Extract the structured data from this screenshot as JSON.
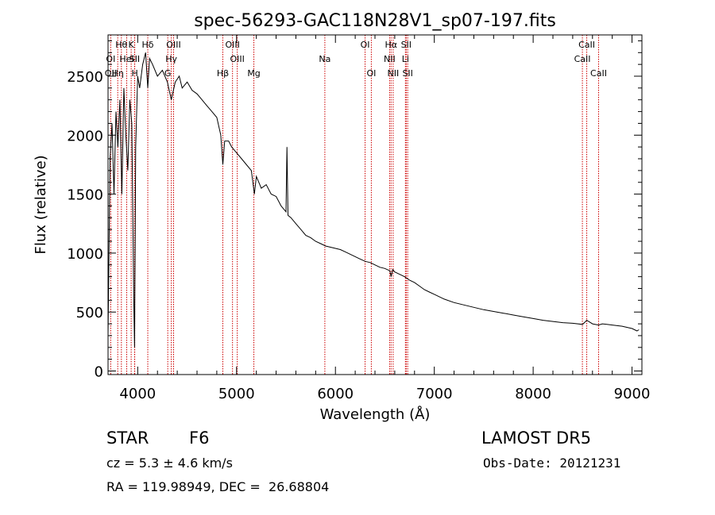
{
  "chart_data": {
    "type": "line",
    "title": "spec-56293-GAC118N28V1_sp07-197.fits",
    "xlabel": "Wavelength (Å)",
    "ylabel": "Flux (relative)",
    "xlim": [
      3700,
      9100
    ],
    "ylim": [
      -30,
      2850
    ],
    "x_ticks": [
      4000,
      5000,
      6000,
      7000,
      8000,
      9000
    ],
    "y_ticks": [
      0,
      500,
      1000,
      1500,
      2000,
      2500
    ],
    "grid": false,
    "series": [
      {
        "x": [
          3700,
          3720,
          3740,
          3760,
          3780,
          3800,
          3820,
          3840,
          3860,
          3880,
          3900,
          3920,
          3940,
          3960,
          3968,
          3980,
          4000,
          4020,
          4050,
          4080,
          4102,
          4120,
          4150,
          4200,
          4250,
          4300,
          4340,
          4380,
          4420,
          4450,
          4500,
          4550,
          4600,
          4650,
          4700,
          4750,
          4800,
          4840,
          4861,
          4880,
          4920,
          4950,
          5000,
          5050,
          5100,
          5150,
          5180,
          5200,
          5250,
          5300,
          5350,
          5400,
          5450,
          5500,
          5510,
          5520,
          5550,
          5600,
          5650,
          5700,
          5750,
          5800,
          5850,
          5900,
          5950,
          6000,
          6050,
          6100,
          6150,
          6200,
          6250,
          6300,
          6350,
          6400,
          6450,
          6500,
          6550,
          6563,
          6580,
          6600,
          6650,
          6700,
          6750,
          6800,
          6850,
          6900,
          6950,
          7000,
          7100,
          7200,
          7300,
          7400,
          7500,
          7600,
          7700,
          7800,
          7900,
          8000,
          8100,
          8200,
          8300,
          8400,
          8500,
          8542,
          8600,
          8662,
          8700,
          8800,
          8900,
          9000,
          9050,
          9070
        ],
        "y": [
          300,
          1800,
          2100,
          1500,
          2200,
          1900,
          2300,
          1500,
          2400,
          2000,
          1700,
          2300,
          2100,
          600,
          200,
          1900,
          2500,
          2400,
          2600,
          2700,
          2400,
          2650,
          2600,
          2500,
          2550,
          2450,
          2300,
          2450,
          2500,
          2400,
          2450,
          2380,
          2350,
          2300,
          2250,
          2200,
          2150,
          2000,
          1750,
          1950,
          1950,
          1900,
          1850,
          1800,
          1750,
          1700,
          1500,
          1650,
          1550,
          1580,
          1500,
          1480,
          1400,
          1350,
          1900,
          1320,
          1300,
          1250,
          1200,
          1150,
          1130,
          1100,
          1080,
          1060,
          1050,
          1040,
          1030,
          1010,
          990,
          970,
          950,
          930,
          920,
          900,
          880,
          870,
          850,
          800,
          860,
          840,
          820,
          800,
          770,
          750,
          720,
          690,
          670,
          650,
          610,
          580,
          560,
          540,
          520,
          505,
          490,
          475,
          460,
          445,
          430,
          420,
          410,
          405,
          395,
          430,
          400,
          390,
          400,
          390,
          380,
          360,
          340,
          350
        ]
      }
    ],
    "line_labels_row1": [
      {
        "wl": 3835,
        "text": "Hθ"
      },
      {
        "wl": 3934,
        "text": "K"
      },
      {
        "wl": 4102,
        "text": "Hδ"
      },
      {
        "wl": 4363,
        "text": "OIII"
      },
      {
        "wl": 4959,
        "text": "OIII"
      },
      {
        "wl": 6300,
        "text": "OI"
      },
      {
        "wl": 6563,
        "text": "Hα"
      },
      {
        "wl": 6716,
        "text": "SII"
      },
      {
        "wl": 8542,
        "text": "CaII"
      }
    ],
    "line_labels_row2": [
      {
        "wl": 3727,
        "text": "OI"
      },
      {
        "wl": 3889,
        "text": "HeI"
      },
      {
        "wl": 3968,
        "text": "SII"
      },
      {
        "wl": 4340,
        "text": "Hγ"
      },
      {
        "wl": 5007,
        "text": "OIII"
      },
      {
        "wl": 5893,
        "text": "Na"
      },
      {
        "wl": 6548,
        "text": "NII"
      },
      {
        "wl": 6708,
        "text": "Li"
      },
      {
        "wl": 8498,
        "text": "CaII"
      }
    ],
    "line_labels_row3": [
      {
        "wl": 3727,
        "text": "OII"
      },
      {
        "wl": 3798,
        "text": "Hη"
      },
      {
        "wl": 3970,
        "text": "H"
      },
      {
        "wl": 4304,
        "text": "G"
      },
      {
        "wl": 4861,
        "text": "Hβ"
      },
      {
        "wl": 5175,
        "text": "Mg"
      },
      {
        "wl": 6363,
        "text": "OI"
      },
      {
        "wl": 6584,
        "text": "NII"
      },
      {
        "wl": 6731,
        "text": "SII"
      },
      {
        "wl": 8662,
        "text": "CaII"
      }
    ],
    "line_color": "#000000",
    "marker_color": "#cc0000"
  },
  "info": {
    "object_type": "STAR",
    "subclass": "F6",
    "survey": "LAMOST DR5",
    "velocity": "cz = 5.3 ± 4.6 km/s",
    "obs_date": "Obs-Date: 20121231",
    "coords": "RA = 119.98949, DEC =  26.68804"
  }
}
